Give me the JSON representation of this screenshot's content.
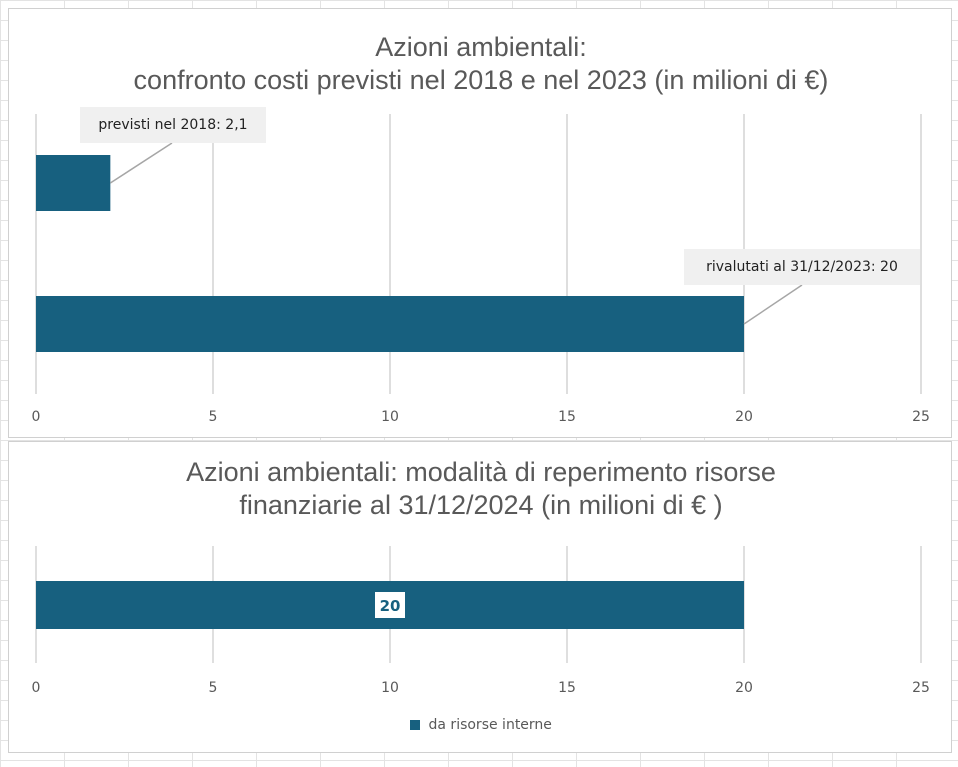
{
  "colors": {
    "bar": "#17607f",
    "grid": "#d4d4d4",
    "text": "#595959"
  },
  "chart_data": [
    {
      "type": "bar",
      "orientation": "horizontal",
      "title_lines": [
        "Azioni ambientali:",
        "confronto costi previsti nel 2018 e nel 2023 (in milioni di €)"
      ],
      "categories": [
        "previsti nel 2018",
        "rivalutati al 31/12/2023"
      ],
      "values": [
        2.1,
        20
      ],
      "data_labels": [
        "previsti nel 2018: 2,1",
        "rivalutati al 31/12/2023: 20"
      ],
      "xlim": [
        0,
        25
      ],
      "xticks": [
        "0",
        "5",
        "10",
        "15",
        "20",
        "25"
      ],
      "grid": true,
      "legend": "none"
    },
    {
      "type": "bar",
      "orientation": "horizontal",
      "title_lines": [
        "Azioni ambientali: modalità di reperimento risorse",
        "finanziarie al 31/12/2024 (in milioni di € )"
      ],
      "series": [
        {
          "name": "da risorse interne",
          "values": [
            20
          ]
        }
      ],
      "data_labels": [
        "20"
      ],
      "xlim": [
        0,
        25
      ],
      "xticks": [
        "0",
        "5",
        "10",
        "15",
        "20",
        "25"
      ],
      "grid": true,
      "legend": "bottom"
    }
  ]
}
